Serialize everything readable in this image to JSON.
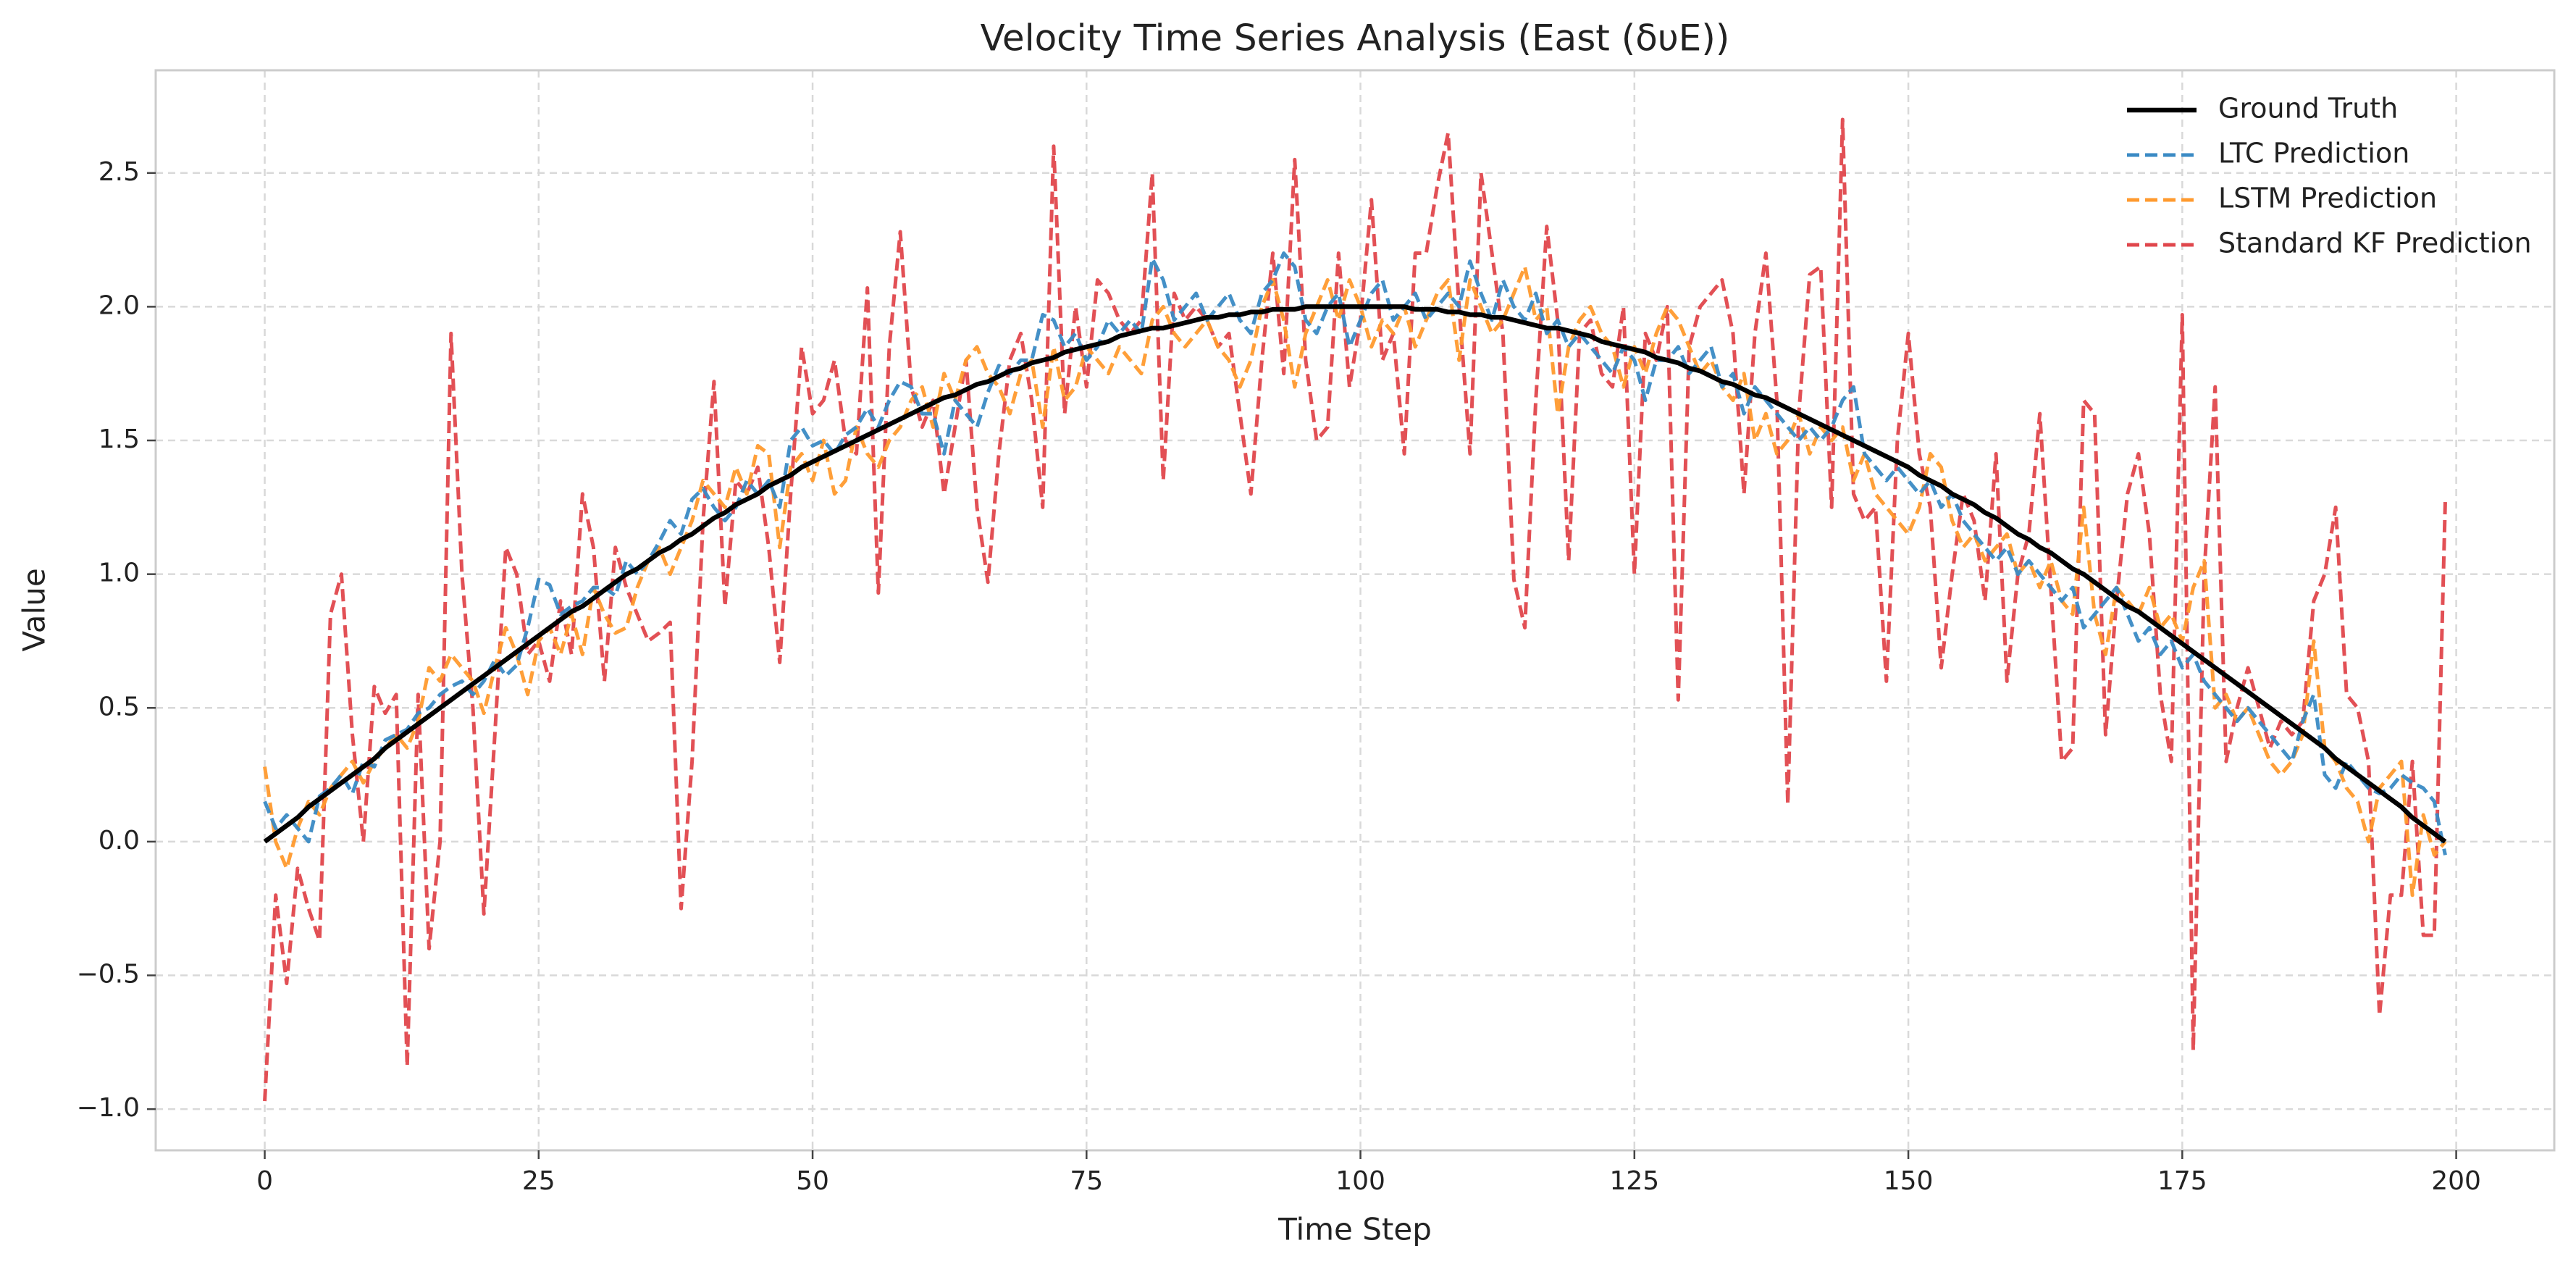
{
  "chart_data": {
    "type": "line",
    "title": "Velocity Time Series Analysis (East (δυE))",
    "x_label": "Time Step",
    "y_label": "Value",
    "x": [
      0,
      1,
      2,
      3,
      4,
      5,
      6,
      7,
      8,
      9,
      10,
      11,
      12,
      13,
      14,
      15,
      16,
      17,
      18,
      19,
      20,
      21,
      22,
      23,
      24,
      25,
      26,
      27,
      28,
      29,
      30,
      31,
      32,
      33,
      34,
      35,
      36,
      37,
      38,
      39,
      40,
      41,
      42,
      43,
      44,
      45,
      46,
      47,
      48,
      49,
      50,
      51,
      52,
      53,
      54,
      55,
      56,
      57,
      58,
      59,
      60,
      61,
      62,
      63,
      64,
      65,
      66,
      67,
      68,
      69,
      70,
      71,
      72,
      73,
      74,
      75,
      76,
      77,
      78,
      79,
      80,
      81,
      82,
      83,
      84,
      85,
      86,
      87,
      88,
      89,
      90,
      91,
      92,
      93,
      94,
      95,
      96,
      97,
      98,
      99,
      100,
      101,
      102,
      103,
      104,
      105,
      106,
      107,
      108,
      109,
      110,
      111,
      112,
      113,
      114,
      115,
      116,
      117,
      118,
      119,
      120,
      121,
      122,
      123,
      124,
      125,
      126,
      127,
      128,
      129,
      130,
      131,
      132,
      133,
      134,
      135,
      136,
      137,
      138,
      139,
      140,
      141,
      142,
      143,
      144,
      145,
      146,
      147,
      148,
      149,
      150,
      151,
      152,
      153,
      154,
      155,
      156,
      157,
      158,
      159,
      160,
      161,
      162,
      163,
      164,
      165,
      166,
      167,
      168,
      169,
      170,
      171,
      172,
      173,
      174,
      175,
      176,
      177,
      178,
      179,
      180,
      181,
      182,
      183,
      184,
      185,
      186,
      187,
      188,
      189,
      190,
      191,
      192,
      193,
      194,
      195,
      196,
      197,
      198,
      199
    ],
    "series": [
      {
        "name": "Ground Truth",
        "color": "#000000",
        "style": "solid",
        "values": [
          0,
          0.03,
          0.06,
          0.09,
          0.13,
          0.16,
          0.19,
          0.22,
          0.25,
          0.28,
          0.31,
          0.35,
          0.38,
          0.41,
          0.44,
          0.47,
          0.5,
          0.53,
          0.56,
          0.59,
          0.62,
          0.65,
          0.68,
          0.71,
          0.74,
          0.77,
          0.8,
          0.83,
          0.86,
          0.88,
          0.91,
          0.94,
          0.97,
          1.0,
          1.02,
          1.05,
          1.08,
          1.1,
          1.13,
          1.15,
          1.18,
          1.21,
          1.23,
          1.26,
          1.28,
          1.3,
          1.33,
          1.35,
          1.37,
          1.4,
          1.42,
          1.44,
          1.46,
          1.48,
          1.5,
          1.52,
          1.54,
          1.56,
          1.58,
          1.6,
          1.62,
          1.64,
          1.66,
          1.67,
          1.69,
          1.71,
          1.72,
          1.74,
          1.76,
          1.77,
          1.79,
          1.8,
          1.81,
          1.83,
          1.84,
          1.85,
          1.86,
          1.87,
          1.89,
          1.9,
          1.91,
          1.92,
          1.92,
          1.93,
          1.94,
          1.95,
          1.96,
          1.96,
          1.97,
          1.97,
          1.98,
          1.98,
          1.99,
          1.99,
          1.99,
          2.0,
          2.0,
          2.0,
          2.0,
          2.0,
          2.0,
          2.0,
          2.0,
          2.0,
          2.0,
          1.99,
          1.99,
          1.99,
          1.98,
          1.98,
          1.97,
          1.97,
          1.96,
          1.96,
          1.95,
          1.94,
          1.93,
          1.92,
          1.92,
          1.91,
          1.9,
          1.89,
          1.87,
          1.86,
          1.85,
          1.84,
          1.83,
          1.81,
          1.8,
          1.79,
          1.77,
          1.76,
          1.74,
          1.72,
          1.71,
          1.69,
          1.67,
          1.66,
          1.64,
          1.62,
          1.6,
          1.58,
          1.56,
          1.54,
          1.52,
          1.5,
          1.48,
          1.46,
          1.44,
          1.42,
          1.4,
          1.37,
          1.35,
          1.33,
          1.3,
          1.28,
          1.26,
          1.23,
          1.21,
          1.18,
          1.15,
          1.13,
          1.1,
          1.08,
          1.05,
          1.02,
          1.0,
          0.97,
          0.94,
          0.91,
          0.88,
          0.86,
          0.83,
          0.8,
          0.77,
          0.74,
          0.71,
          0.68,
          0.65,
          0.62,
          0.59,
          0.56,
          0.53,
          0.5,
          0.47,
          0.44,
          0.41,
          0.38,
          0.35,
          0.31,
          0.28,
          0.25,
          0.22,
          0.19,
          0.16,
          0.13,
          0.09,
          0.06,
          0.03,
          0
        ]
      },
      {
        "name": "LTC Prediction",
        "color": "#3a8ac4",
        "style": "dashed",
        "values": [
          0.15,
          0.05,
          0.1,
          0.05,
          0.0,
          0.17,
          0.2,
          0.25,
          0.18,
          0.3,
          0.28,
          0.38,
          0.4,
          0.42,
          0.48,
          0.5,
          0.55,
          0.58,
          0.6,
          0.55,
          0.6,
          0.68,
          0.62,
          0.66,
          0.8,
          0.98,
          0.96,
          0.85,
          0.88,
          0.9,
          0.95,
          0.95,
          0.92,
          1.05,
          1.0,
          1.05,
          1.12,
          1.2,
          1.15,
          1.28,
          1.32,
          1.25,
          1.2,
          1.25,
          1.35,
          1.3,
          1.35,
          1.25,
          1.5,
          1.55,
          1.48,
          1.5,
          1.45,
          1.52,
          1.55,
          1.62,
          1.55,
          1.65,
          1.72,
          1.7,
          1.6,
          1.6,
          1.45,
          1.65,
          1.6,
          1.55,
          1.68,
          1.78,
          1.75,
          1.8,
          1.8,
          1.97,
          1.95,
          1.85,
          1.9,
          1.8,
          1.85,
          1.95,
          1.9,
          1.95,
          1.9,
          2.18,
          2.1,
          1.95,
          2.0,
          2.05,
          1.95,
          2.0,
          2.05,
          1.95,
          1.9,
          2.05,
          2.1,
          2.2,
          2.15,
          1.95,
          1.9,
          2.0,
          2.05,
          1.85,
          1.95,
          2.05,
          2.1,
          1.95,
          2.0,
          2.05,
          1.95,
          2.0,
          2.05,
          2.0,
          2.17,
          2.05,
          1.95,
          2.1,
          2.0,
          1.95,
          2.05,
          1.9,
          1.95,
          1.85,
          1.9,
          1.85,
          1.8,
          1.75,
          1.85,
          1.8,
          1.65,
          1.8,
          1.8,
          1.85,
          1.75,
          1.8,
          1.85,
          1.7,
          1.75,
          1.6,
          1.7,
          1.65,
          1.6,
          1.55,
          1.5,
          1.55,
          1.5,
          1.55,
          1.65,
          1.7,
          1.45,
          1.4,
          1.35,
          1.4,
          1.35,
          1.3,
          1.35,
          1.25,
          1.3,
          1.2,
          1.15,
          1.1,
          1.05,
          1.1,
          1.0,
          1.05,
          1.0,
          0.95,
          0.9,
          0.95,
          0.8,
          0.85,
          0.9,
          0.95,
          0.85,
          0.75,
          0.8,
          0.7,
          0.75,
          0.65,
          0.7,
          0.6,
          0.55,
          0.5,
          0.45,
          0.5,
          0.45,
          0.4,
          0.35,
          0.3,
          0.45,
          0.55,
          0.25,
          0.2,
          0.3,
          0.25,
          0.2,
          0.18,
          0.2,
          0.25,
          0.22,
          0.2,
          0.15,
          -0.05
        ]
      },
      {
        "name": "LSTM Prediction",
        "color": "#ff9a2e",
        "style": "dashed",
        "values": [
          0.28,
          0.0,
          -0.1,
          0.05,
          0.15,
          0.1,
          0.2,
          0.25,
          0.3,
          0.22,
          0.3,
          0.35,
          0.4,
          0.35,
          0.45,
          0.65,
          0.6,
          0.7,
          0.65,
          0.6,
          0.48,
          0.65,
          0.8,
          0.7,
          0.55,
          0.75,
          0.8,
          0.7,
          0.85,
          0.7,
          0.95,
          0.85,
          0.78,
          0.8,
          0.95,
          1.05,
          1.1,
          1.0,
          1.1,
          1.2,
          1.35,
          1.3,
          1.25,
          1.4,
          1.3,
          1.48,
          1.45,
          1.1,
          1.4,
          1.45,
          1.35,
          1.5,
          1.3,
          1.35,
          1.55,
          1.45,
          1.4,
          1.5,
          1.55,
          1.65,
          1.7,
          1.55,
          1.75,
          1.65,
          1.8,
          1.85,
          1.75,
          1.7,
          1.6,
          1.75,
          1.8,
          1.55,
          1.85,
          1.65,
          1.7,
          1.85,
          1.8,
          1.75,
          1.85,
          1.8,
          1.75,
          1.95,
          2.0,
          1.9,
          1.85,
          1.9,
          1.95,
          1.85,
          1.8,
          1.7,
          1.8,
          2.0,
          2.1,
          1.95,
          1.7,
          1.9,
          2.0,
          2.1,
          1.95,
          2.1,
          2.0,
          1.85,
          1.95,
          1.9,
          2.0,
          1.85,
          1.95,
          2.05,
          2.1,
          1.8,
          2.1,
          2.0,
          1.9,
          1.95,
          2.05,
          2.15,
          1.95,
          2.0,
          1.6,
          1.85,
          1.95,
          2.0,
          1.9,
          1.85,
          1.7,
          1.85,
          1.75,
          1.9,
          2.0,
          1.95,
          1.85,
          1.75,
          1.8,
          1.7,
          1.65,
          1.75,
          1.5,
          1.6,
          1.45,
          1.5,
          1.6,
          1.45,
          1.55,
          1.5,
          1.55,
          1.35,
          1.45,
          1.3,
          1.25,
          1.2,
          1.15,
          1.25,
          1.45,
          1.4,
          1.2,
          1.1,
          1.15,
          1.05,
          1.1,
          1.15,
          1.0,
          1.05,
          0.95,
          1.05,
          0.9,
          0.85,
          1.25,
          0.85,
          0.7,
          0.95,
          0.9,
          0.85,
          0.95,
          0.8,
          0.85,
          0.75,
          0.95,
          1.05,
          0.5,
          0.55,
          0.45,
          0.5,
          0.4,
          0.3,
          0.25,
          0.3,
          0.4,
          0.75,
          0.35,
          0.3,
          0.2,
          0.15,
          0.0,
          0.2,
          0.25,
          0.3,
          -0.2,
          0.1,
          -0.05,
          0.0
        ]
      },
      {
        "name": "Standard KF Prediction",
        "color": "#e0474c",
        "style": "dashed",
        "values": [
          -0.97,
          -0.2,
          -0.53,
          -0.1,
          -0.25,
          -0.37,
          0.85,
          1.0,
          0.4,
          0.0,
          0.58,
          0.48,
          0.55,
          -0.84,
          0.55,
          -0.4,
          0.0,
          1.9,
          1.0,
          0.5,
          -0.27,
          0.4,
          1.1,
          1.0,
          0.7,
          0.75,
          0.6,
          0.9,
          0.7,
          1.3,
          1.1,
          0.6,
          1.1,
          0.95,
          0.85,
          0.75,
          0.78,
          0.82,
          -0.25,
          0.3,
          1.2,
          1.72,
          0.88,
          1.35,
          1.3,
          1.4,
          1.1,
          0.67,
          1.3,
          1.85,
          1.6,
          1.65,
          1.8,
          1.5,
          1.45,
          2.07,
          0.93,
          1.85,
          2.28,
          1.7,
          1.55,
          1.65,
          1.3,
          1.55,
          1.8,
          1.25,
          0.97,
          1.45,
          1.8,
          1.9,
          1.65,
          1.25,
          2.6,
          1.6,
          2.0,
          1.7,
          2.1,
          2.05,
          1.95,
          1.9,
          1.95,
          2.5,
          1.35,
          2.05,
          1.95,
          2.0,
          1.95,
          1.85,
          1.9,
          1.6,
          1.3,
          1.8,
          2.2,
          1.75,
          2.55,
          1.8,
          1.5,
          1.55,
          2.2,
          1.7,
          1.95,
          2.4,
          1.8,
          1.9,
          1.45,
          2.2,
          2.2,
          2.45,
          2.65,
          2.0,
          1.45,
          2.5,
          2.2,
          1.9,
          0.98,
          0.8,
          1.65,
          2.3,
          1.95,
          1.05,
          1.9,
          1.95,
          1.75,
          1.7,
          2.0,
          1.0,
          1.9,
          1.8,
          2.0,
          0.53,
          1.85,
          2.0,
          2.05,
          2.1,
          1.9,
          1.3,
          1.9,
          2.2,
          1.65,
          0.14,
          1.6,
          2.12,
          2.15,
          1.25,
          2.7,
          1.3,
          1.2,
          1.25,
          0.6,
          1.5,
          1.9,
          1.45,
          1.25,
          0.65,
          1.0,
          1.3,
          1.2,
          0.9,
          1.45,
          0.6,
          1.0,
          1.15,
          1.6,
          0.95,
          0.3,
          0.35,
          1.65,
          1.6,
          0.4,
          0.9,
          1.3,
          1.45,
          1.15,
          0.55,
          0.3,
          1.97,
          -0.78,
          1.0,
          1.7,
          0.3,
          0.5,
          0.65,
          0.5,
          0.35,
          0.45,
          0.4,
          0.45,
          0.9,
          1.0,
          1.25,
          0.55,
          0.5,
          0.3,
          -0.65,
          -0.2,
          -0.2,
          0.3,
          -0.35,
          -0.35,
          1.27
        ]
      }
    ],
    "xlim": [
      -9.95,
      208.95
    ],
    "ylim": [
      -1.154,
      2.884
    ],
    "xticks": [
      0,
      25,
      50,
      75,
      100,
      125,
      150,
      175,
      200
    ],
    "yticks": [
      {
        "value": -1,
        "label": "−1.0"
      },
      {
        "value": -0.5,
        "label": "−0.5"
      },
      {
        "value": 0,
        "label": "0.0"
      },
      0.5,
      {
        "value": 1,
        "label": "1.0"
      },
      1.5,
      {
        "value": 2,
        "label": "2.0"
      },
      2.5
    ],
    "grid": true,
    "legend": "upper right"
  }
}
